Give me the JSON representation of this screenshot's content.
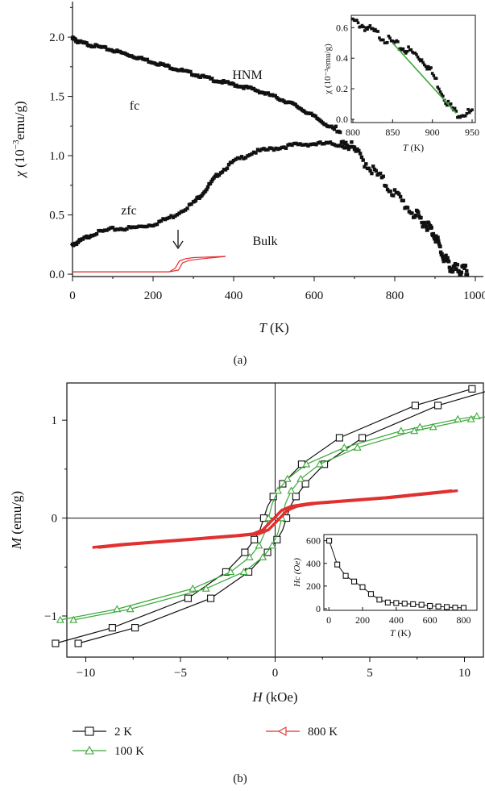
{
  "chart_data": [
    {
      "panel": "(a)",
      "type": "scatter",
      "xlabel_sym": "T",
      "xlabel_unit": "(K)",
      "ylabel_sym": "χ",
      "ylabel_unit": "(10",
      "ylabel_exp": "−3",
      "ylabel_rest": "emu/g)",
      "xlim": [
        0,
        1020
      ],
      "ylim": [
        -0.02,
        2.3
      ],
      "xticks": [
        "0",
        "200",
        "400",
        "600",
        "800",
        "1000"
      ],
      "xtick_values": [
        0,
        200,
        400,
        600,
        800,
        1000
      ],
      "yticks": [
        "0.0",
        "0.5",
        "1.0",
        "1.5",
        "2.0"
      ],
      "ytick_values": [
        0,
        0.5,
        1.0,
        1.5,
        2.0
      ],
      "annotations": {
        "fc": "fc",
        "hnm": "HNM",
        "zfc": "zfc",
        "bulk": "Bulk"
      },
      "series": [
        {
          "name": "fc",
          "color": "#111111",
          "x": [
            0,
            15,
            50,
            100,
            150,
            200,
            250,
            300,
            350,
            400,
            450,
            500,
            550,
            600,
            650,
            700,
            750,
            800,
            850,
            880,
            900,
            920,
            940,
            960,
            980
          ],
          "y": [
            1.99,
            1.96,
            1.93,
            1.89,
            1.84,
            1.79,
            1.74,
            1.69,
            1.64,
            1.6,
            1.56,
            1.5,
            1.43,
            1.33,
            1.22,
            1.04,
            0.86,
            0.68,
            0.5,
            0.42,
            0.33,
            0.15,
            0.05,
            0.03,
            0.03
          ]
        },
        {
          "name": "zfc",
          "color": "#111111",
          "x": [
            0,
            20,
            50,
            100,
            150,
            200,
            250,
            300,
            330,
            360,
            400,
            450,
            500,
            550,
            600,
            650,
            700
          ],
          "y": [
            0.25,
            0.28,
            0.34,
            0.38,
            0.39,
            0.42,
            0.49,
            0.6,
            0.71,
            0.84,
            0.95,
            1.03,
            1.06,
            1.09,
            1.1,
            1.1,
            1.06
          ]
        },
        {
          "name": "Bulk",
          "color": "#e03030",
          "x": [
            0,
            240,
            255,
            265,
            280,
            300,
            380
          ],
          "y": [
            0.02,
            0.02,
            0.05,
            0.11,
            0.13,
            0.14,
            0.15
          ]
        }
      ],
      "arrow_at_T": 262,
      "inset": {
        "xlabel_sym": "T",
        "xlabel_unit": "(K)",
        "ylabel": "χ (10⁻³emu/g)",
        "xlim": [
          800,
          950
        ],
        "ylim": [
          0,
          0.67
        ],
        "xticks": [
          "800",
          "850",
          "900",
          "950"
        ],
        "xtick_values": [
          800,
          850,
          900,
          950
        ],
        "yticks": [
          "0.0",
          "0.2",
          "0.4",
          "0.6"
        ],
        "ytick_values": [
          0,
          0.2,
          0.4,
          0.6
        ],
        "data": {
          "x": [
            800,
            810,
            820,
            830,
            840,
            850,
            860,
            870,
            880,
            890,
            900,
            910,
            920,
            930,
            940,
            950
          ],
          "y": [
            0.64,
            0.62,
            0.59,
            0.56,
            0.53,
            0.5,
            0.47,
            0.45,
            0.42,
            0.38,
            0.3,
            0.2,
            0.1,
            0.04,
            0.04,
            0.04
          ]
        },
        "fit": {
          "x": [
            850,
            930
          ],
          "y": [
            0.5,
            0.04
          ],
          "color": "#3aa838"
        }
      }
    },
    {
      "panel": "(b)",
      "type": "line",
      "xlabel_sym": "H",
      "xlabel_unit": "(kOe)",
      "ylabel_sym": "M",
      "ylabel_unit": "(emu/g)",
      "xlim": [
        -11,
        11
      ],
      "ylim": [
        -1.42,
        1.38
      ],
      "xticks": [
        "−10",
        "−5",
        "0",
        "5",
        "10"
      ],
      "xtick_values": [
        -10,
        -5,
        0,
        5,
        10
      ],
      "yticks": [
        "−1",
        "0",
        "1"
      ],
      "ytick_values": [
        -1,
        0,
        1
      ],
      "series": [
        {
          "name": "2 K",
          "color": "#111111",
          "marker": "square",
          "x": [
            -11,
            -8,
            -4,
            -2,
            -1,
            -0.5,
            -0.2,
            0,
            0.2,
            0.5,
            1,
            2,
            4,
            8,
            11
          ],
          "y": [
            -1.28,
            -1.12,
            -0.82,
            -0.55,
            -0.35,
            -0.22,
            -0.12,
            0.0,
            0.12,
            0.22,
            0.35,
            0.55,
            0.82,
            1.15,
            1.32
          ]
        },
        {
          "name": "100 K",
          "color": "#3aa838",
          "marker": "triangle",
          "x": [
            -11,
            -8,
            -4,
            -2,
            -1,
            -0.5,
            -0.2,
            0,
            0.2,
            0.5,
            1,
            2,
            4,
            7,
            8,
            10,
            11
          ],
          "y": [
            -1.04,
            -0.93,
            -0.72,
            -0.55,
            -0.4,
            -0.28,
            -0.15,
            0.0,
            0.15,
            0.28,
            0.4,
            0.55,
            0.72,
            0.89,
            0.93,
            1.01,
            1.04
          ]
        },
        {
          "name": "800 K",
          "color": "#e03030",
          "marker": "triangle-left",
          "x": [
            -9.5,
            -8,
            -6,
            -4,
            -2,
            -1,
            -0.5,
            0,
            0.5,
            1,
            2,
            4,
            6,
            8,
            9.5
          ],
          "y": [
            -0.3,
            -0.27,
            -0.24,
            -0.21,
            -0.18,
            -0.16,
            -0.12,
            -0.02,
            0.08,
            0.12,
            0.15,
            0.18,
            0.21,
            0.25,
            0.28
          ]
        }
      ],
      "inset": {
        "xlabel_sym": "T",
        "xlabel_unit": "(K)",
        "ylabel": "Hc (Oe)",
        "xlim": [
          -20,
          860
        ],
        "ylim": [
          0,
          640
        ],
        "xticks": [
          "0",
          "200",
          "400",
          "600",
          "800"
        ],
        "xtick_values": [
          0,
          200,
          400,
          600,
          800
        ],
        "yticks": [
          "0",
          "200",
          "400",
          "600"
        ],
        "ytick_values": [
          0,
          200,
          400,
          600
        ],
        "data": {
          "x": [
            2,
            50,
            100,
            150,
            200,
            250,
            300,
            350,
            400,
            450,
            500,
            550,
            600,
            650,
            700,
            750,
            800
          ],
          "y": [
            600,
            390,
            290,
            240,
            190,
            130,
            80,
            55,
            50,
            45,
            40,
            35,
            25,
            20,
            15,
            10,
            8
          ]
        }
      },
      "legend": [
        {
          "label": "2 K",
          "color": "#111111",
          "marker": "square"
        },
        {
          "label": "100 K",
          "color": "#3aa838",
          "marker": "triangle"
        },
        {
          "label": "800 K",
          "color": "#e03030",
          "marker": "triangle-left"
        }
      ]
    }
  ]
}
